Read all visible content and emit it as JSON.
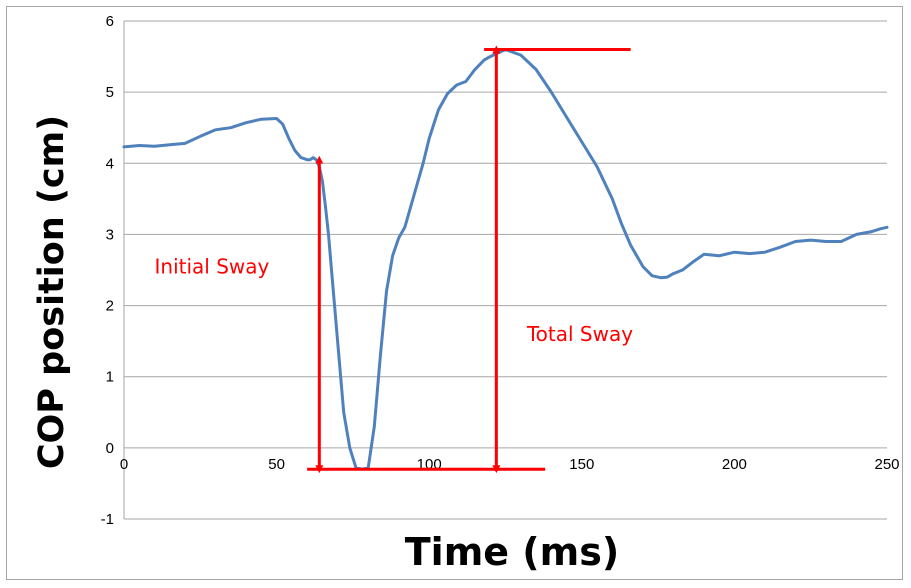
{
  "chart_data": {
    "type": "line",
    "title": "",
    "xlabel": "Time (ms)",
    "ylabel": "COP position (cm)",
    "xlim": [
      0,
      250
    ],
    "ylim": [
      -1,
      6
    ],
    "xticks": [
      0,
      50,
      100,
      150,
      200,
      250
    ],
    "yticks": [
      -1,
      0,
      1,
      2,
      3,
      4,
      5,
      6
    ],
    "grid": "horizontal",
    "legend": "none",
    "series": [
      {
        "color": "#4f81bd",
        "x": [
          0,
          5,
          10,
          15,
          20,
          25,
          30,
          35,
          40,
          45,
          50,
          52,
          54,
          56,
          58,
          60,
          61,
          62,
          63,
          64,
          65,
          66,
          67,
          68,
          70,
          72,
          74,
          76,
          78,
          80,
          82,
          84,
          86,
          88,
          90,
          92,
          94,
          96,
          98,
          100,
          103,
          106,
          109,
          112,
          115,
          118,
          120,
          125,
          130,
          135,
          140,
          145,
          150,
          155,
          160,
          163,
          166,
          170,
          173,
          176,
          178,
          180,
          183,
          186,
          190,
          195,
          200,
          205,
          210,
          215,
          220,
          225,
          230,
          235,
          240,
          245,
          248,
          250
        ],
        "y": [
          4.23,
          4.25,
          4.24,
          4.26,
          4.28,
          4.38,
          4.47,
          4.5,
          4.57,
          4.62,
          4.63,
          4.55,
          4.35,
          4.18,
          4.08,
          4.05,
          4.05,
          4.08,
          4.05,
          3.95,
          3.75,
          3.4,
          3.0,
          2.5,
          1.5,
          0.5,
          0.0,
          -0.28,
          -0.3,
          -0.28,
          0.3,
          1.3,
          2.2,
          2.7,
          2.95,
          3.1,
          3.4,
          3.7,
          4.0,
          4.35,
          4.75,
          4.98,
          5.1,
          5.15,
          5.32,
          5.45,
          5.5,
          5.6,
          5.52,
          5.32,
          5.0,
          4.65,
          4.3,
          3.95,
          3.5,
          3.15,
          2.85,
          2.55,
          2.42,
          2.39,
          2.4,
          2.45,
          2.5,
          2.6,
          2.72,
          2.7,
          2.75,
          2.73,
          2.75,
          2.82,
          2.9,
          2.92,
          2.9,
          2.9,
          3.0,
          3.04,
          3.08,
          3.1
        ]
      }
    ],
    "annotations": {
      "color": "#ff0000",
      "initial_sway": {
        "label": "Initial Sway",
        "arrow_x": 64,
        "arrow_y": [
          -0.3,
          4.05
        ],
        "label_x": 10,
        "label_y": 2.45
      },
      "total_sway": {
        "label": "Total Sway",
        "arrow_x": 122,
        "arrow_y": [
          -0.3,
          5.6
        ],
        "label_x": 132,
        "label_y": 1.5
      },
      "lines": [
        {
          "name": "min-line",
          "x": [
            60,
            138
          ],
          "y": -0.3
        },
        {
          "name": "max-line",
          "x": [
            118,
            166
          ],
          "y": 5.6
        }
      ]
    }
  }
}
